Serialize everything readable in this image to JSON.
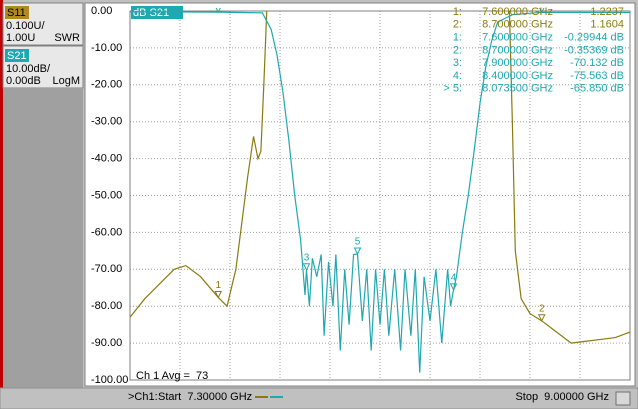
{
  "chart_data": {
    "type": "line",
    "trace_title": "dB S21",
    "average": "Ch 1 Avg =  73",
    "xlim": [
      7.3,
      9.0
    ],
    "xticks": [
      7.3,
      7.47,
      7.64,
      7.81,
      7.98,
      8.15,
      8.32,
      8.49,
      8.66,
      8.83,
      9.0
    ],
    "ylim": [
      -100,
      0
    ],
    "yticks": [
      {
        "value": 0,
        "label": "0.00"
      },
      {
        "value": -10,
        "label": "-10.00"
      },
      {
        "value": -20,
        "label": "-20.00"
      },
      {
        "value": -30,
        "label": "-30.00"
      },
      {
        "value": -40,
        "label": "-40.00"
      },
      {
        "value": -50,
        "label": "-50.00"
      },
      {
        "value": -60,
        "label": "-60.00"
      },
      {
        "value": -70,
        "label": "-70.00"
      },
      {
        "value": -80,
        "label": "-80.00"
      },
      {
        "value": -90,
        "label": "-90.00"
      },
      {
        "value": -100,
        "label": "-100.00"
      }
    ],
    "y2lim": [
      1.0,
      2.0
    ],
    "grid": true,
    "series": [
      {
        "name": "S11",
        "color": "#8a7a10",
        "axis": "y2",
        "scale": "0.100U/",
        "ref": "1.00U",
        "format": "SWR",
        "x": [
          7.3,
          7.35,
          7.4,
          7.45,
          7.49,
          7.54,
          7.6,
          7.63,
          7.66,
          7.7,
          7.72,
          7.735,
          7.745,
          7.755,
          7.765,
          7.78,
          8.58,
          8.59,
          8.6,
          8.61,
          8.63,
          8.66,
          8.7,
          8.75,
          8.8,
          8.85,
          8.9,
          8.95,
          9.0
        ],
        "values": [
          1.17,
          1.22,
          1.26,
          1.3,
          1.31,
          1.28,
          1.2237,
          1.2,
          1.3,
          1.55,
          1.66,
          1.6,
          1.62,
          1.8,
          2.0,
          null,
          null,
          2.0,
          1.7,
          1.35,
          1.22,
          1.18,
          1.1604,
          1.13,
          1.1,
          1.105,
          1.11,
          1.115,
          1.13
        ],
        "markers": [
          {
            "tag": "1",
            "id": "1:",
            "x": 7.6,
            "value": 1.2237,
            "x_label": "7.600000 GHz",
            "value_label": "1.2237"
          },
          {
            "tag": "2",
            "id": "2:",
            "x": 8.7,
            "value": 1.1604,
            "x_label": "8.700000 GHz",
            "value_label": "1.1604"
          }
        ]
      },
      {
        "name": "S21",
        "color": "#1fa8b0",
        "scale": "10.00dB/",
        "ref": "0.00dB",
        "format": "LogM",
        "x": [
          7.3,
          7.6,
          7.75,
          7.78,
          7.8,
          7.82,
          7.84,
          7.86,
          7.88,
          7.895,
          7.9,
          7.91,
          7.92,
          7.935,
          7.95,
          7.96,
          7.975,
          7.99,
          8.0,
          8.015,
          8.03,
          8.045,
          8.06,
          8.0735,
          8.09,
          8.105,
          8.12,
          8.135,
          8.15,
          8.165,
          8.18,
          8.2,
          8.22,
          8.235,
          8.255,
          8.27,
          8.285,
          8.3,
          8.32,
          8.34,
          8.36,
          8.38,
          8.39,
          8.4,
          8.41,
          8.43,
          8.45,
          8.47,
          8.49,
          8.51,
          8.53,
          8.55,
          8.6,
          8.7,
          9.0
        ],
        "values": [
          -0.2,
          -0.29944,
          -0.5,
          -5,
          -12,
          -22,
          -35,
          -50,
          -62,
          -77,
          -70.132,
          -80,
          -67,
          -72,
          -66,
          -88,
          -68,
          -80,
          -66,
          -92,
          -70,
          -85,
          -66,
          -65.85,
          -84,
          -70,
          -92,
          -70,
          -85,
          -70,
          -88,
          -70,
          -92,
          -70,
          -88,
          -70,
          -98,
          -72,
          -84,
          -70,
          -90,
          -70,
          -80,
          -75.563,
          -72,
          -60,
          -50,
          -38,
          -25,
          -15,
          -8,
          -3,
          -1,
          -0.35369,
          -0.4
        ],
        "markers": [
          {
            "tag": "1",
            "id": "1:",
            "x": 7.6,
            "value": -0.29944,
            "x_label": "7.600000 GHz",
            "value_label": "-0.29944 dB"
          },
          {
            "tag": "2",
            "id": "2:",
            "x": 8.7,
            "value": -0.35369,
            "x_label": "8.700000 GHz",
            "value_label": "-0.35369 dB"
          },
          {
            "tag": "3",
            "id": "3:",
            "x": 7.9,
            "value": -70.132,
            "x_label": "7.900000 GHz",
            "value_label": "-70.132 dB"
          },
          {
            "tag": "4",
            "id": "4:",
            "x": 8.4,
            "value": -75.563,
            "x_label": "8.400000 GHz",
            "value_label": "-75.563 dB"
          },
          {
            "tag": "5",
            "id": "> 5:",
            "x": 8.0735,
            "value": -65.85,
            "x_label": "8.073500 GHz",
            "value_label": "-65.850 dB"
          }
        ]
      }
    ],
    "status": {
      "channel": ">Ch1:",
      "start": "Start  7.30000 GHz",
      "stop": "Stop  9.00000 GHz"
    }
  }
}
